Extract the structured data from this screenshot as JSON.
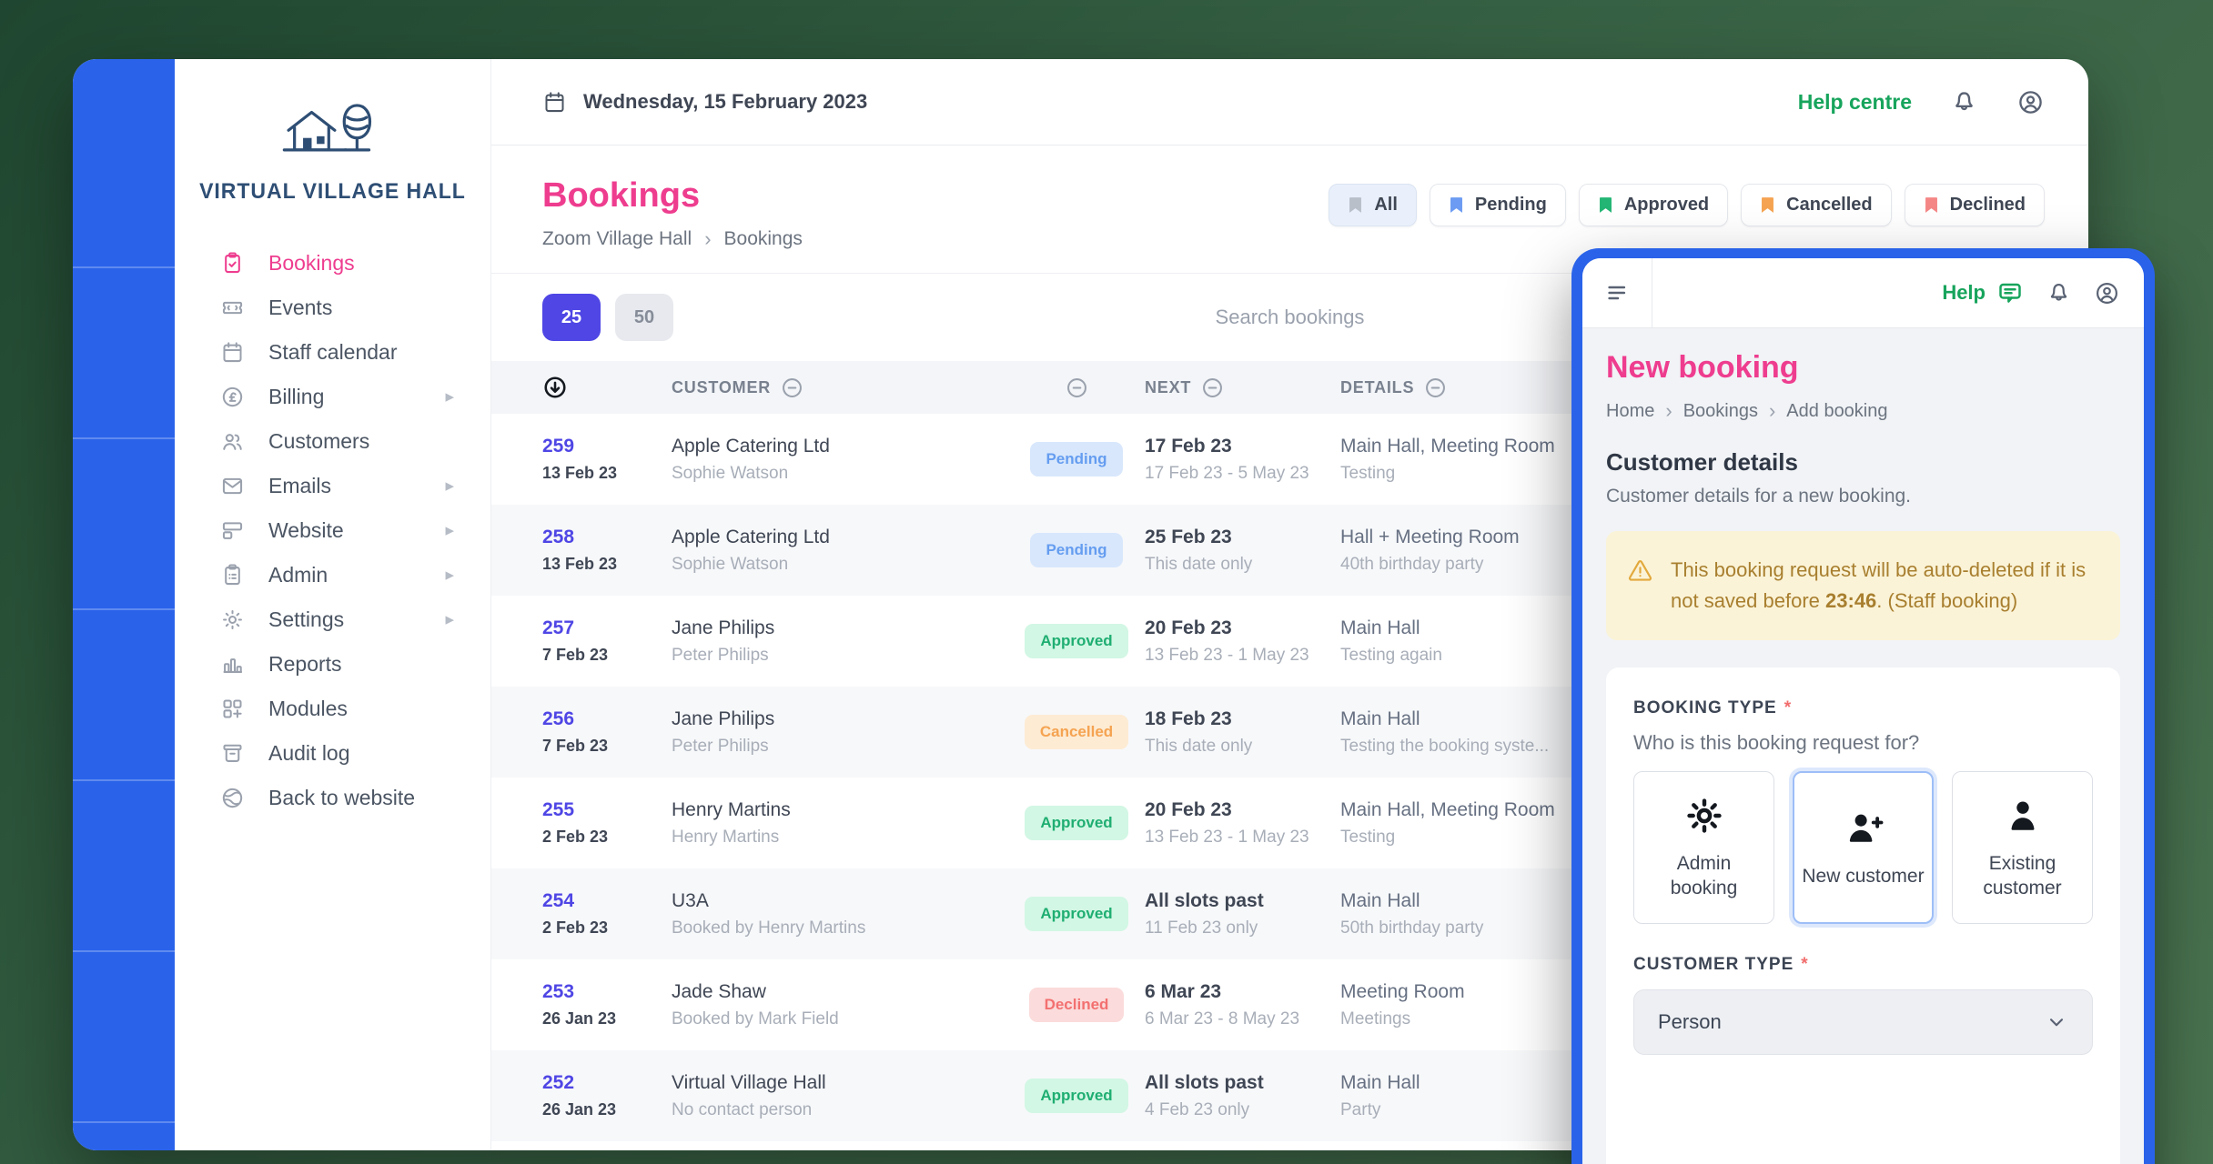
{
  "colors": {
    "pink": "#ee3d8f",
    "indigo": "#4f46e5",
    "rail_blue": "#2a63ea",
    "frame_blue": "#2a63ea",
    "help_green": "#17a45c",
    "bg_green_dark": "#1f4630",
    "bg_green_light": "#4a7350",
    "warning_bg": "#fbf3d7",
    "warning_fg": "#a87f2f",
    "badge_pending_bg": "#d8e7fc",
    "badge_pending_fg": "#659df0",
    "badge_approved_bg": "#d2f7e4",
    "badge_approved_fg": "#1fae72",
    "badge_cancelled_bg": "#fdebd3",
    "badge_cancelled_fg": "#f5a351",
    "badge_declined_bg": "#fbdbdb",
    "badge_declined_fg": "#f37070"
  },
  "sidebar": {
    "logo_text": "VIRTUAL VILLAGE HALL",
    "items": [
      {
        "label": "Bookings",
        "icon": "clipboard-check",
        "active": true
      },
      {
        "label": "Events",
        "icon": "ticket"
      },
      {
        "label": "Staff calendar",
        "icon": "calendar"
      },
      {
        "label": "Billing",
        "icon": "pound-circle",
        "submenu": true
      },
      {
        "label": "Customers",
        "icon": "users"
      },
      {
        "label": "Emails",
        "icon": "envelope",
        "submenu": true
      },
      {
        "label": "Website",
        "icon": "browser",
        "submenu": true
      },
      {
        "label": "Admin",
        "icon": "clipboard-list",
        "submenu": true
      },
      {
        "label": "Settings",
        "icon": "gear",
        "submenu": true
      },
      {
        "label": "Reports",
        "icon": "bar-chart"
      },
      {
        "label": "Modules",
        "icon": "grid-plus"
      },
      {
        "label": "Audit log",
        "icon": "archive"
      },
      {
        "label": "Back to website",
        "icon": "globe"
      }
    ]
  },
  "topbar": {
    "date": "Wednesday, 15 February 2023",
    "help_centre_label": "Help centre"
  },
  "bookings": {
    "title": "Bookings",
    "breadcrumb": [
      "Zoom Village Hall",
      "Bookings"
    ],
    "filters": [
      {
        "label": "All",
        "color": "#b9bfc9",
        "selected": true
      },
      {
        "label": "Pending",
        "color": "#6b9bf2"
      },
      {
        "label": "Approved",
        "color": "#22b573"
      },
      {
        "label": "Cancelled",
        "color": "#f5a351"
      },
      {
        "label": "Declined",
        "color": "#f58686"
      }
    ],
    "page_sizes": [
      {
        "value": "25",
        "selected": true
      },
      {
        "value": "50",
        "selected": false
      }
    ],
    "search_placeholder": "Search bookings",
    "table": {
      "col_customer": "CUSTOMER",
      "col_next": "NEXT",
      "col_details": "DETAILS",
      "rows": [
        {
          "id": "259",
          "created": "13 Feb 23",
          "customer": "Apple Catering Ltd",
          "contact": "Sophie Watson",
          "status": "Pending",
          "next": "17 Feb 23",
          "next_sub": "17 Feb 23 - 5 May 23",
          "details": "Main Hall, Meeting Room",
          "details_sub": "Testing"
        },
        {
          "id": "258",
          "created": "13 Feb 23",
          "customer": "Apple Catering Ltd",
          "contact": "Sophie Watson",
          "status": "Pending",
          "next": "25 Feb 23",
          "next_sub": "This date only",
          "details": "Hall + Meeting Room",
          "details_sub": "40th birthday party"
        },
        {
          "id": "257",
          "created": "7 Feb 23",
          "customer": "Jane Philips",
          "contact": "Peter Philips",
          "status": "Approved",
          "next": "20 Feb 23",
          "next_sub": "13 Feb 23 - 1 May 23",
          "details": "Main Hall",
          "details_sub": "Testing again"
        },
        {
          "id": "256",
          "created": "7 Feb 23",
          "customer": "Jane Philips",
          "contact": "Peter Philips",
          "status": "Cancelled",
          "next": "18 Feb 23",
          "next_sub": "This date only",
          "details": "Main Hall",
          "details_sub": "Testing the booking syste..."
        },
        {
          "id": "255",
          "created": "2 Feb 23",
          "customer": "Henry Martins",
          "contact": "Henry Martins",
          "status": "Approved",
          "next": "20 Feb 23",
          "next_sub": "13 Feb 23 - 1 May 23",
          "details": "Main Hall, Meeting Room",
          "details_sub": "Testing"
        },
        {
          "id": "254",
          "created": "2 Feb 23",
          "customer": "U3A",
          "contact": "Booked by Henry Martins",
          "status": "Approved",
          "next": "All slots past",
          "next_sub": "11 Feb 23 only",
          "details": "Main Hall",
          "details_sub": "50th birthday party"
        },
        {
          "id": "253",
          "created": "26 Jan 23",
          "customer": "Jade Shaw",
          "contact": "Booked by Mark Field",
          "status": "Declined",
          "next": "6 Mar 23",
          "next_sub": "6 Mar 23 - 8 May 23",
          "details": "Meeting Room",
          "details_sub": "Meetings"
        },
        {
          "id": "252",
          "created": "26 Jan 23",
          "customer": "Virtual Village Hall",
          "contact": "No contact person",
          "status": "Approved",
          "next": "All slots past",
          "next_sub": "4 Feb 23 only",
          "details": "Main Hall",
          "details_sub": "Party"
        }
      ]
    }
  },
  "panel": {
    "help_label": "Help",
    "title": "New booking",
    "breadcrumb": [
      "Home",
      "Bookings",
      "Add booking"
    ],
    "section_title": "Customer details",
    "section_subtitle": "Customer details for a new booking.",
    "warning": {
      "text_before": "This booking request will be auto-deleted if it is not saved before ",
      "time": "23:46",
      "text_after": ". (Staff booking)"
    },
    "booking_type": {
      "label": "BOOKING TYPE",
      "required_marker": "*",
      "question": "Who is this booking request for?",
      "options": [
        {
          "label": "Admin booking",
          "icon": "gear-bold",
          "selected": false
        },
        {
          "label": "New customer",
          "icon": "person-plus",
          "selected": true
        },
        {
          "label": "Existing customer",
          "icon": "person",
          "selected": false
        }
      ]
    },
    "customer_type": {
      "label": "CUSTOMER TYPE",
      "required_marker": "*",
      "value": "Person"
    }
  }
}
